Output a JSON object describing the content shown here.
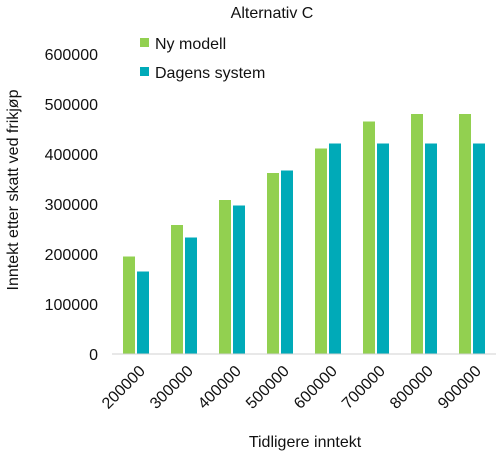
{
  "chart_data": {
    "type": "bar",
    "title": "Alternativ C",
    "xlabel": "Tidligere inntekt",
    "ylabel": "Inntekt etter skatt ved frikjøp",
    "categories": [
      "200000",
      "300000",
      "400000",
      "500000",
      "600000",
      "700000",
      "800000",
      "900000"
    ],
    "series": [
      {
        "name": "Ny modell",
        "color": "#92d050",
        "values": [
          195000,
          258000,
          308000,
          362000,
          411000,
          465000,
          480000,
          480000
        ]
      },
      {
        "name": "Dagens system",
        "color": "#00aab8",
        "values": [
          165000,
          233000,
          297000,
          367000,
          421000,
          421000,
          421000,
          421000
        ]
      }
    ],
    "ylim": [
      0,
      600000
    ],
    "yticks": [
      "0",
      "100000",
      "200000",
      "300000",
      "400000",
      "500000",
      "600000"
    ],
    "grid": false,
    "legend": "top-left"
  }
}
